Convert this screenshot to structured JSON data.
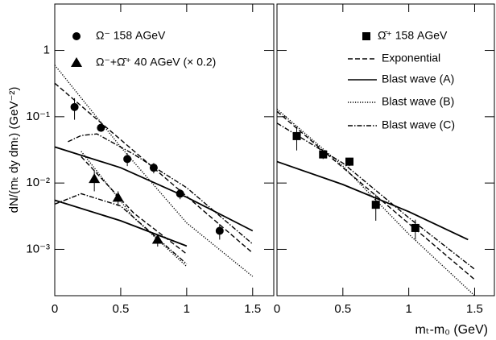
{
  "chart_data": [
    {
      "type": "scatter",
      "log_y": true,
      "color": "#000000",
      "y_label": "dN/(mₜ dy dmₜ) (GeV⁻²)",
      "xlim": [
        0,
        1.66
      ],
      "xticks": [
        0,
        0.5,
        1,
        1.5
      ],
      "ylim": [
        0.0002,
        5
      ],
      "yticks": [
        {
          "value": 0.001,
          "label": "10⁻³"
        },
        {
          "value": 0.01,
          "label": "10⁻²"
        },
        {
          "value": 0.1,
          "label": "10⁻¹"
        },
        1
      ],
      "series": [
        {
          "name": "Ω⁻ 158 AGeV",
          "marker": "circle",
          "x": [
            0.15,
            0.35,
            0.55,
            0.75,
            0.95,
            1.25
          ],
          "values": [
            0.14,
            0.068,
            0.023,
            0.017,
            0.0069,
            0.0019
          ],
          "errors": [
            0.05,
            0.008,
            0.005,
            0.003,
            0.0012,
            0.0005
          ]
        },
        {
          "name": "Ω⁻+Ω̄⁺ 40 AGeV (× 0.2)",
          "marker": "triangle",
          "x": [
            0.3,
            0.48,
            0.78
          ],
          "values": [
            0.0115,
            0.006,
            0.0014
          ],
          "errors": [
            0.004,
            0.0015,
            0.0003
          ]
        },
        {
          "style": "dashed",
          "x": [
            0,
            0.5,
            1,
            1.5
          ],
          "values": [
            0.32,
            0.045,
            0.0063,
            0.00088
          ]
        },
        {
          "style": "solid",
          "x": [
            0,
            0.5,
            1,
            1.5
          ],
          "values": [
            0.035,
            0.017,
            0.0061,
            0.0019
          ]
        },
        {
          "style": "dotted",
          "x": [
            0,
            0.5,
            1,
            1.5
          ],
          "values": [
            0.6,
            0.035,
            0.0025,
            0.00039
          ]
        },
        {
          "style": "dashdot",
          "x": [
            0.1,
            0.2,
            0.32,
            0.6,
            1,
            1.5
          ],
          "values": [
            0.042,
            0.052,
            0.055,
            0.027,
            0.0085,
            0.0012
          ]
        },
        {
          "style": "solid",
          "x": [
            0,
            0.5,
            1
          ],
          "values": [
            0.0055,
            0.0027,
            0.00112
          ]
        },
        {
          "style": "dashed",
          "x": [
            0.2,
            0.6,
            1
          ],
          "values": [
            0.025,
            0.0035,
            0.00085
          ]
        },
        {
          "style": "dotted",
          "x": [
            0.2,
            0.6,
            1
          ],
          "values": [
            0.03,
            0.003,
            0.00055
          ]
        },
        {
          "style": "dashdot",
          "x": [
            0,
            0.2,
            0.5,
            1
          ],
          "values": [
            0.0048,
            0.0069,
            0.0045,
            0.0006
          ]
        }
      ]
    },
    {
      "type": "scatter",
      "log_y": true,
      "color": "#000000",
      "ytick_labels": false,
      "x_label": "mₜ-m₀ (GeV)",
      "xlim": [
        0,
        1.65
      ],
      "xticks": [
        0,
        0.5,
        1,
        1.5
      ],
      "ylim": [
        0.0002,
        5
      ],
      "yticks": [
        0.001,
        0.01,
        0.1,
        1
      ],
      "series": [
        {
          "name": "Ω̄⁺ 158 AGeV",
          "marker": "square",
          "x": [
            0.15,
            0.35,
            0.55,
            0.75,
            1.05
          ],
          "values": [
            0.051,
            0.027,
            0.021,
            0.0047,
            0.0021
          ],
          "errors": [
            0.02,
            0.004,
            0.003,
            0.002,
            0.0007
          ]
        },
        {
          "name": "Exponential",
          "style": "dashed",
          "x": [
            0,
            0.5,
            1,
            1.5
          ],
          "values": [
            0.12,
            0.0171,
            0.00245,
            0.00035
          ]
        },
        {
          "name": "Blast wave (A)",
          "style": "solid",
          "x": [
            0,
            0.5,
            1,
            1.45
          ],
          "values": [
            0.021,
            0.0095,
            0.0037,
            0.0014
          ]
        },
        {
          "name": "Blast wave (B)",
          "style": "dotted",
          "x": [
            0,
            0.5,
            1,
            1.5
          ],
          "values": [
            0.13,
            0.018,
            0.0017,
            0.0002
          ]
        },
        {
          "name": "Blast wave (C)",
          "style": "dashdot",
          "x": [
            0,
            0.5,
            1,
            1.5
          ],
          "values": [
            0.08,
            0.02,
            0.003,
            0.0005
          ]
        }
      ]
    }
  ]
}
